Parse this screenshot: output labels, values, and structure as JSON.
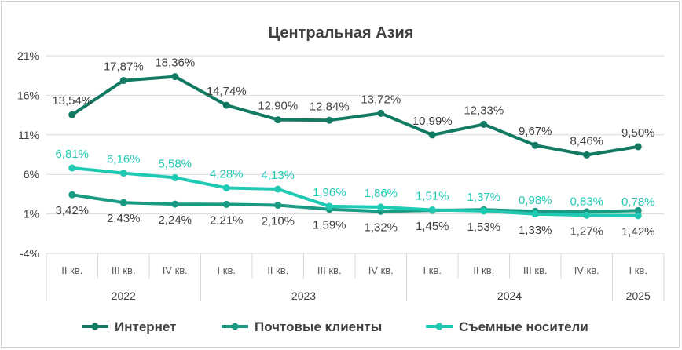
{
  "chart_data": {
    "type": "line",
    "title": "Центральная Азия",
    "xlabel": "",
    "ylabel": "",
    "ylim": [
      -4,
      21
    ],
    "yticks": [
      "21%",
      "16%",
      "11%",
      "6%",
      "1%",
      "-4%"
    ],
    "ytick_values": [
      21,
      16,
      11,
      6,
      1,
      -4
    ],
    "categories": [
      "II кв.",
      "III кв.",
      "IV кв.",
      "I кв.",
      "II кв.",
      "III кв.",
      "IV кв.",
      "I кв.",
      "II кв.",
      "III кв.",
      "IV кв.",
      "I кв."
    ],
    "years": [
      {
        "label": "2022",
        "span": 3
      },
      {
        "label": "2023",
        "span": 4
      },
      {
        "label": "2024",
        "span": 4
      },
      {
        "label": "2025",
        "span": 1
      }
    ],
    "grid": true,
    "legend_position": "bottom",
    "series": [
      {
        "name": "Интернет",
        "color": "#127a63",
        "values": [
          13.54,
          17.87,
          18.36,
          14.74,
          12.9,
          12.84,
          13.72,
          10.99,
          12.33,
          9.67,
          8.46,
          9.5
        ],
        "labels": [
          "13,54%",
          "17,87%",
          "18,36%",
          "14,74%",
          "12,90%",
          "12,84%",
          "13,72%",
          "10,99%",
          "12,33%",
          "9,67%",
          "8,46%",
          "9,50%"
        ]
      },
      {
        "name": "Почтовые клиенты",
        "color": "#1a9a83",
        "values": [
          3.42,
          2.43,
          2.24,
          2.21,
          2.1,
          1.59,
          1.32,
          1.45,
          1.53,
          1.33,
          1.27,
          1.42
        ],
        "labels": [
          "3,42%",
          "2,43%",
          "2,24%",
          "2,21%",
          "2,10%",
          "1,59%",
          "1,32%",
          "1,45%",
          "1,53%",
          "1,33%",
          "1,27%",
          "1,42%"
        ]
      },
      {
        "name": "Съемные носители",
        "color": "#1fc9b4",
        "values": [
          6.81,
          6.16,
          5.58,
          4.28,
          4.13,
          1.96,
          1.86,
          1.51,
          1.37,
          0.98,
          0.83,
          0.78
        ],
        "labels": [
          "6,81%",
          "6,16%",
          "5,58%",
          "4,28%",
          "4,13%",
          "1,96%",
          "1,86%",
          "1,51%",
          "1,37%",
          "0,98%",
          "0,83%",
          "0,78%"
        ]
      }
    ]
  }
}
